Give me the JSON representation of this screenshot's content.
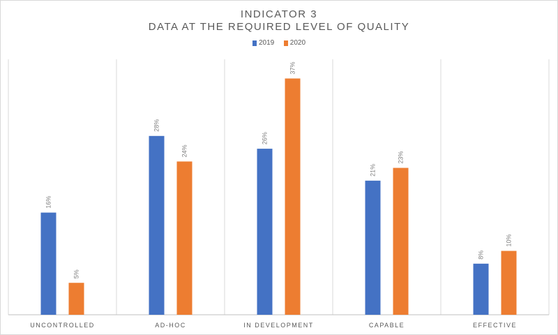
{
  "chart_data": {
    "type": "bar",
    "title": "INDICATOR 3",
    "subtitle": "DATA AT THE REQUIRED LEVEL OF QUALITY",
    "categories": [
      "UNCONTROLLED",
      "AD-HOC",
      "IN DEVELOPMENT",
      "CAPABLE",
      "EFFECTIVE"
    ],
    "series": [
      {
        "name": "2019",
        "color": "#4472c4",
        "values": [
          16,
          28,
          26,
          21,
          8
        ],
        "labels": [
          "16%",
          "28%",
          "26%",
          "21%",
          "8%"
        ]
      },
      {
        "name": "2020",
        "color": "#ed7d31",
        "values": [
          5,
          24,
          37,
          23,
          10
        ],
        "labels": [
          "5%",
          "24%",
          "37%",
          "23%",
          "10%"
        ]
      }
    ],
    "ylim": [
      0,
      40
    ],
    "yunit": "%",
    "grid": "vertical category separators",
    "legend": "top-center"
  }
}
